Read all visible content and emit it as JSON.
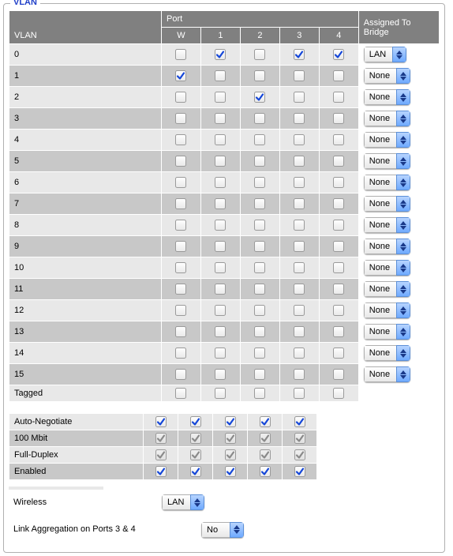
{
  "title": "VLAN",
  "headers": {
    "vlan": "VLAN",
    "port": "Port",
    "ports": [
      "W",
      "1",
      "2",
      "3",
      "4"
    ],
    "assigned": "Assigned To Bridge"
  },
  "vlan_rows": [
    {
      "label": "0",
      "ports": [
        false,
        true,
        false,
        true,
        true
      ],
      "bridge": "LAN"
    },
    {
      "label": "1",
      "ports": [
        true,
        false,
        false,
        false,
        false
      ],
      "bridge": "None"
    },
    {
      "label": "2",
      "ports": [
        false,
        false,
        true,
        false,
        false
      ],
      "bridge": "None"
    },
    {
      "label": "3",
      "ports": [
        false,
        false,
        false,
        false,
        false
      ],
      "bridge": "None"
    },
    {
      "label": "4",
      "ports": [
        false,
        false,
        false,
        false,
        false
      ],
      "bridge": "None"
    },
    {
      "label": "5",
      "ports": [
        false,
        false,
        false,
        false,
        false
      ],
      "bridge": "None"
    },
    {
      "label": "6",
      "ports": [
        false,
        false,
        false,
        false,
        false
      ],
      "bridge": "None"
    },
    {
      "label": "7",
      "ports": [
        false,
        false,
        false,
        false,
        false
      ],
      "bridge": "None"
    },
    {
      "label": "8",
      "ports": [
        false,
        false,
        false,
        false,
        false
      ],
      "bridge": "None"
    },
    {
      "label": "9",
      "ports": [
        false,
        false,
        false,
        false,
        false
      ],
      "bridge": "None"
    },
    {
      "label": "10",
      "ports": [
        false,
        false,
        false,
        false,
        false
      ],
      "bridge": "None"
    },
    {
      "label": "11",
      "ports": [
        false,
        false,
        false,
        false,
        false
      ],
      "bridge": "None"
    },
    {
      "label": "12",
      "ports": [
        false,
        false,
        false,
        false,
        false
      ],
      "bridge": "None"
    },
    {
      "label": "13",
      "ports": [
        false,
        false,
        false,
        false,
        false
      ],
      "bridge": "None"
    },
    {
      "label": "14",
      "ports": [
        false,
        false,
        false,
        false,
        false
      ],
      "bridge": "None"
    },
    {
      "label": "15",
      "ports": [
        false,
        false,
        false,
        false,
        false
      ],
      "bridge": "None"
    },
    {
      "label": "Tagged",
      "ports": [
        false,
        false,
        false,
        false,
        false
      ],
      "bridge": null
    }
  ],
  "port_option_rows": [
    {
      "label": "Auto-Negotiate",
      "ports": [
        true,
        true,
        true,
        true,
        true
      ],
      "disabled": false
    },
    {
      "label": "100 Mbit",
      "ports": [
        true,
        true,
        true,
        true,
        true
      ],
      "disabled": true
    },
    {
      "label": "Full-Duplex",
      "ports": [
        true,
        true,
        true,
        true,
        true
      ],
      "disabled": true
    },
    {
      "label": "Enabled",
      "ports": [
        true,
        true,
        true,
        true,
        true
      ],
      "disabled": false
    }
  ],
  "wireless": {
    "label": "Wireless",
    "value": "LAN"
  },
  "link_agg": {
    "label": "Link Aggregation on Ports 3 & 4",
    "value": "No"
  },
  "colors": {
    "header_bg": "#808080",
    "row_even": "#e8e8e8",
    "row_odd": "#c8c8c8",
    "check_blue": "#1446d8",
    "check_grey": "#8a8a8a",
    "select_blue_top": "#b7d4ff",
    "select_blue_bot": "#6faaff",
    "legend_color": "#2140c8"
  }
}
